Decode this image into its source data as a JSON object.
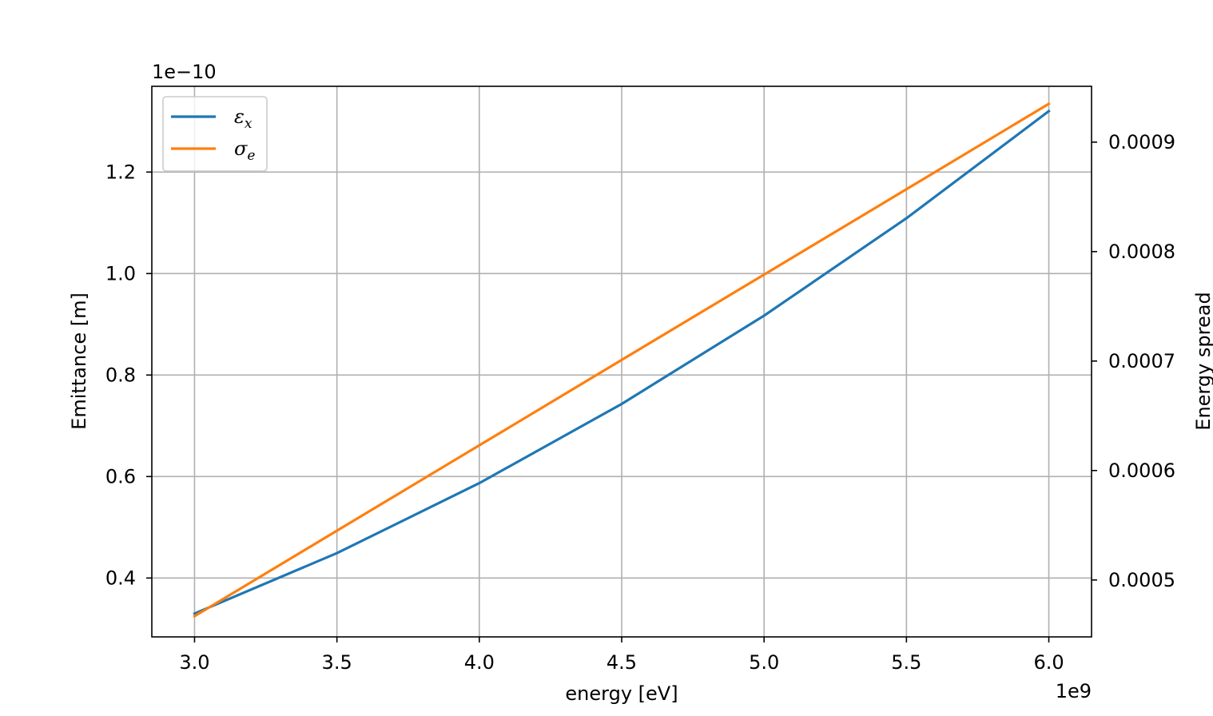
{
  "chart_data": {
    "type": "line",
    "title": "",
    "xlabel": "energy [eV]",
    "ylabel_left": "Emittance [m]",
    "ylabel_right": "Energy spread",
    "x_multiplier": "1e9",
    "y_left_multiplier": "1e−10",
    "x": [
      3000000000,
      3500000000,
      4000000000,
      4500000000,
      5000000000,
      5500000000,
      6000000000
    ],
    "xlim": [
      2850000000,
      6150000000
    ],
    "ylim_left": [
      2.84e-11,
      1.369e-10
    ],
    "ylim_right": [
      0.000448,
      0.000951
    ],
    "x_ticks": [
      {
        "value": 3000000000,
        "label": "3.0"
      },
      {
        "value": 3500000000,
        "label": "3.5"
      },
      {
        "value": 4000000000,
        "label": "4.0"
      },
      {
        "value": 4500000000,
        "label": "4.5"
      },
      {
        "value": 5000000000,
        "label": "5.0"
      },
      {
        "value": 5500000000,
        "label": "5.5"
      },
      {
        "value": 6000000000,
        "label": "6.0"
      }
    ],
    "y_left_ticks": [
      {
        "value": 4e-11,
        "label": "0.4"
      },
      {
        "value": 6e-11,
        "label": "0.6"
      },
      {
        "value": 8e-11,
        "label": "0.8"
      },
      {
        "value": 1e-10,
        "label": "1.0"
      },
      {
        "value": 1.2e-10,
        "label": "1.2"
      }
    ],
    "y_right_ticks": [
      {
        "value": 0.0005,
        "label": "0.0005"
      },
      {
        "value": 0.0006,
        "label": "0.0006"
      },
      {
        "value": 0.0007,
        "label": "0.0007"
      },
      {
        "value": 0.0008,
        "label": "0.0008"
      },
      {
        "value": 0.0009,
        "label": "0.0009"
      }
    ],
    "grid": true,
    "legend_position": "upper-left",
    "series": [
      {
        "name": "ε",
        "name_subscript": "x",
        "axis": "left",
        "color": "#1f77b4",
        "values": [
          3.3e-11,
          4.49e-11,
          5.87e-11,
          7.43e-11,
          9.17e-11,
          1.109e-10,
          1.32e-10
        ]
      },
      {
        "name": "σ",
        "name_subscript": "e",
        "axis": "right",
        "color": "#ff7f0e",
        "values": [
          0.000467,
          0.000545,
          0.000623,
          0.000701,
          0.000779,
          0.000857,
          0.000935
        ]
      }
    ]
  }
}
